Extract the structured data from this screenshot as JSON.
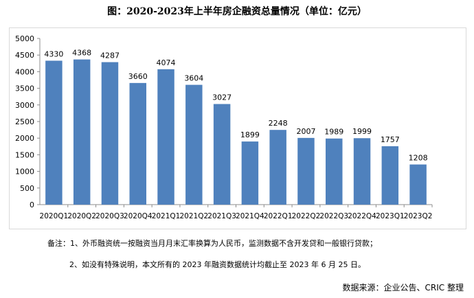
{
  "chart_data": {
    "type": "bar",
    "title": "图：2020-2023年上半年房企融资总量情况（单位：亿元）",
    "categories": [
      "2020Q1",
      "2020Q2",
      "2020Q3",
      "2020Q4",
      "2021Q1",
      "2021Q2",
      "2021Q3",
      "2021Q4",
      "2022Q1",
      "2022Q2",
      "2022Q3",
      "2022Q4",
      "2023Q1",
      "2023Q2"
    ],
    "values": [
      4330,
      4368,
      4287,
      3660,
      4074,
      3604,
      3027,
      1899,
      2248,
      2007,
      1989,
      1999,
      1757,
      1208
    ],
    "yticks": [
      0,
      500,
      1000,
      1500,
      2000,
      2500,
      3000,
      3500,
      4000,
      4500,
      5000
    ],
    "ylim": [
      0,
      5000
    ],
    "xlabel": "",
    "ylabel": "",
    "bar_color": "#4f81bd",
    "grid": false,
    "legend": "none"
  },
  "notes": {
    "line1": "备注：1、外币融资统一按融资当月月末汇率换算为人民币，监测数据不含开发贷和一般银行贷款；",
    "line2": "2、如没有特殊说明，本文所有的 2023 年融资数据统计均截止至 2023 年 6 月 25 日。"
  },
  "source": "数据来源：企业公告、CRIC 整理"
}
